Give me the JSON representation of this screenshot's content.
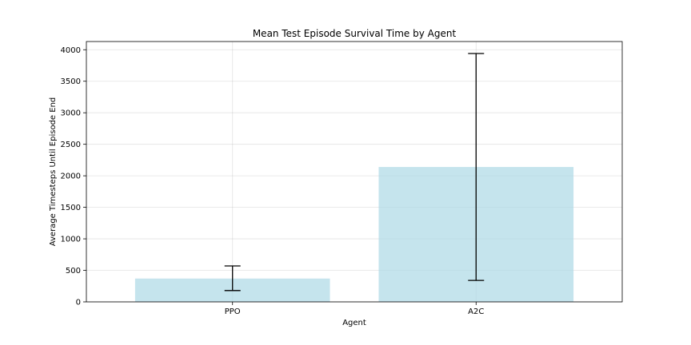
{
  "chart_data": {
    "type": "bar",
    "title": "Mean Test Episode Survival Time by Agent",
    "xlabel": "Agent",
    "ylabel": "Average Timesteps Until Episode End",
    "categories": [
      "PPO",
      "A2C"
    ],
    "values": [
      370,
      2140
    ],
    "error_low": [
      180,
      340
    ],
    "error_high": [
      570,
      3940
    ],
    "ylim": [
      0,
      4130
    ],
    "yticks": [
      0,
      500,
      1000,
      1500,
      2000,
      2500,
      3000,
      3500,
      4000
    ],
    "grid": true,
    "bar_color": "#add8e6",
    "bar_opacity": 0.7,
    "error_color": "#000000"
  }
}
